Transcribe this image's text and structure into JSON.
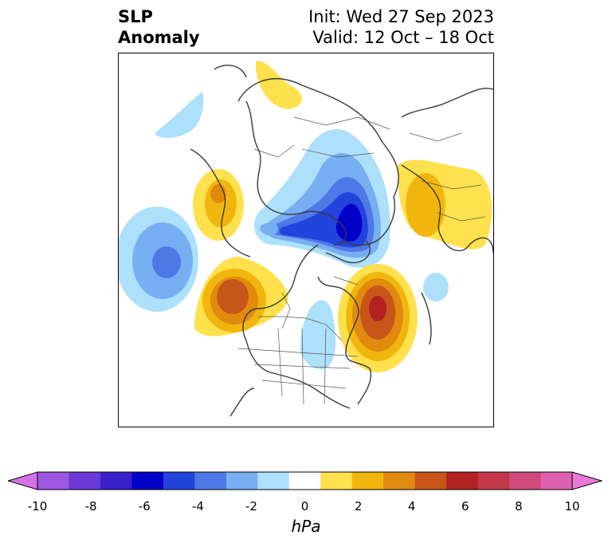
{
  "title": {
    "left_line1": "SLP",
    "left_line2": "Anomaly",
    "right_line1": "Init: Wed 27 Sep 2023",
    "right_line2": "Valid: 12 Oct – 18 Oct"
  },
  "map": {
    "projection": "polar-stereographic",
    "region": "Northern Hemisphere",
    "features": [
      {
        "name": "negative-anomaly-arctic",
        "sign": "negative",
        "peak_hpa": -6
      },
      {
        "name": "negative-anomaly-north-pacific",
        "sign": "negative",
        "peak_hpa": -4
      },
      {
        "name": "negative-anomaly-central-north-america",
        "sign": "negative",
        "peak_hpa": -1
      },
      {
        "name": "negative-anomaly-greenland",
        "sign": "negative",
        "peak_hpa": -1
      },
      {
        "name": "positive-anomaly-gulf-of-alaska",
        "sign": "positive",
        "peak_hpa": 4
      },
      {
        "name": "positive-anomaly-north-atlantic",
        "sign": "positive",
        "peak_hpa": 5
      },
      {
        "name": "positive-anomaly-kamchatka",
        "sign": "positive",
        "peak_hpa": 2
      },
      {
        "name": "positive-anomaly-scandinavia",
        "sign": "positive",
        "peak_hpa": 2
      },
      {
        "name": "positive-anomaly-mediterranean",
        "sign": "positive",
        "peak_hpa": 1
      }
    ]
  },
  "colorbar": {
    "units": "hPa",
    "ticks": [
      "-10",
      "-8",
      "-6",
      "-4",
      "-2",
      "0",
      "2",
      "4",
      "6",
      "8",
      "10"
    ],
    "colors": [
      "#d473e8",
      "#9d57e0",
      "#6b3ad6",
      "#3a1fcc",
      "#0000c8",
      "#2244dd",
      "#4d78e6",
      "#78aef2",
      "#ace0fb",
      "#ffffff",
      "#ffe14d",
      "#f1b60d",
      "#e08a10",
      "#c8551a",
      "#b22222",
      "#c2374a",
      "#cf4a7a",
      "#dc62b0",
      "#ea7ad8"
    ]
  }
}
